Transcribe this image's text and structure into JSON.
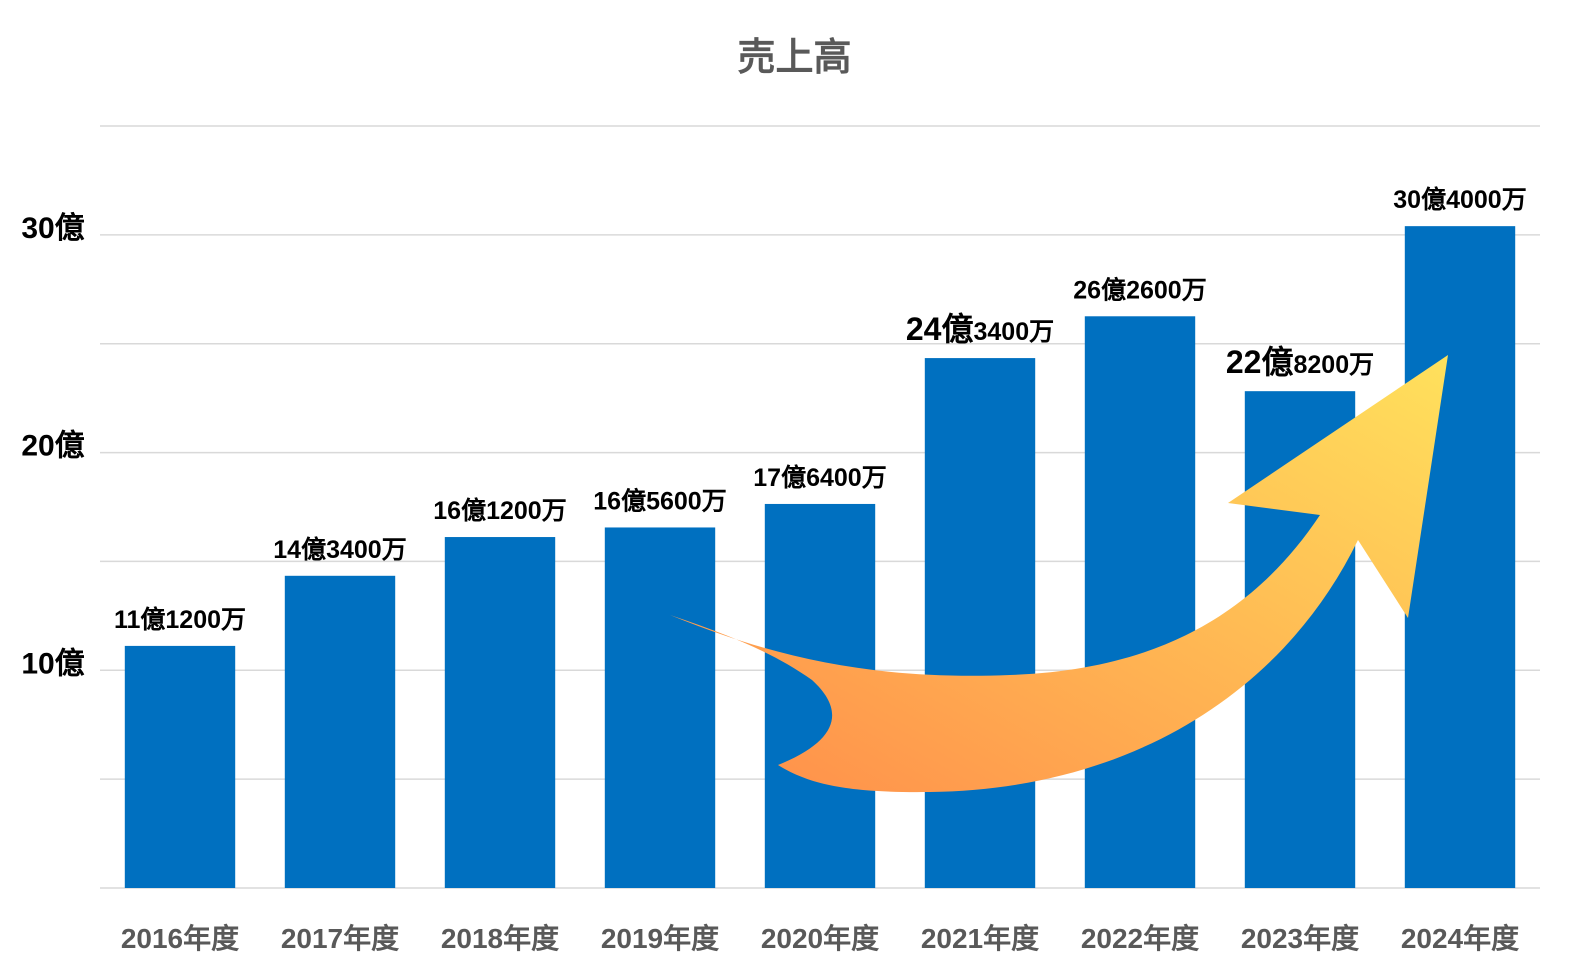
{
  "chart_data": {
    "type": "bar",
    "title": "売上高",
    "categories": [
      "2016年度",
      "2017年度",
      "2018年度",
      "2019年度",
      "2020年度",
      "2021年度",
      "2022年度",
      "2023年度",
      "2024年度"
    ],
    "values": [
      11.12,
      14.34,
      16.12,
      16.56,
      17.64,
      24.34,
      26.26,
      22.82,
      30.4
    ],
    "data_labels": [
      {
        "big": "11",
        "unit": "億",
        "small": "1200万"
      },
      {
        "big": "14",
        "unit": "億",
        "small": "3400万"
      },
      {
        "big": "16",
        "unit": "億",
        "small": "1200万"
      },
      {
        "big": "16",
        "unit": "億",
        "small": "5600万"
      },
      {
        "big": "17",
        "unit": "億",
        "small": "6400万"
      },
      {
        "big": "24",
        "unit": "億",
        "small": "3400万"
      },
      {
        "big": "26",
        "unit": "億",
        "small": "2600万"
      },
      {
        "big": "22",
        "unit": "億",
        "small": "8200万"
      },
      {
        "big": "30",
        "unit": "億",
        "small": "4000万"
      }
    ],
    "y_ticks": [
      {
        "value": 10,
        "label": "10億"
      },
      {
        "value": 20,
        "label": "20億"
      },
      {
        "value": 30,
        "label": "30億"
      }
    ],
    "ylim": [
      0,
      35
    ],
    "grid_step": 5,
    "grid": true,
    "legend": "none",
    "bar_color": "#0070C0",
    "arrow_gradient": [
      "#FF8C4A",
      "#FFE15C"
    ]
  }
}
